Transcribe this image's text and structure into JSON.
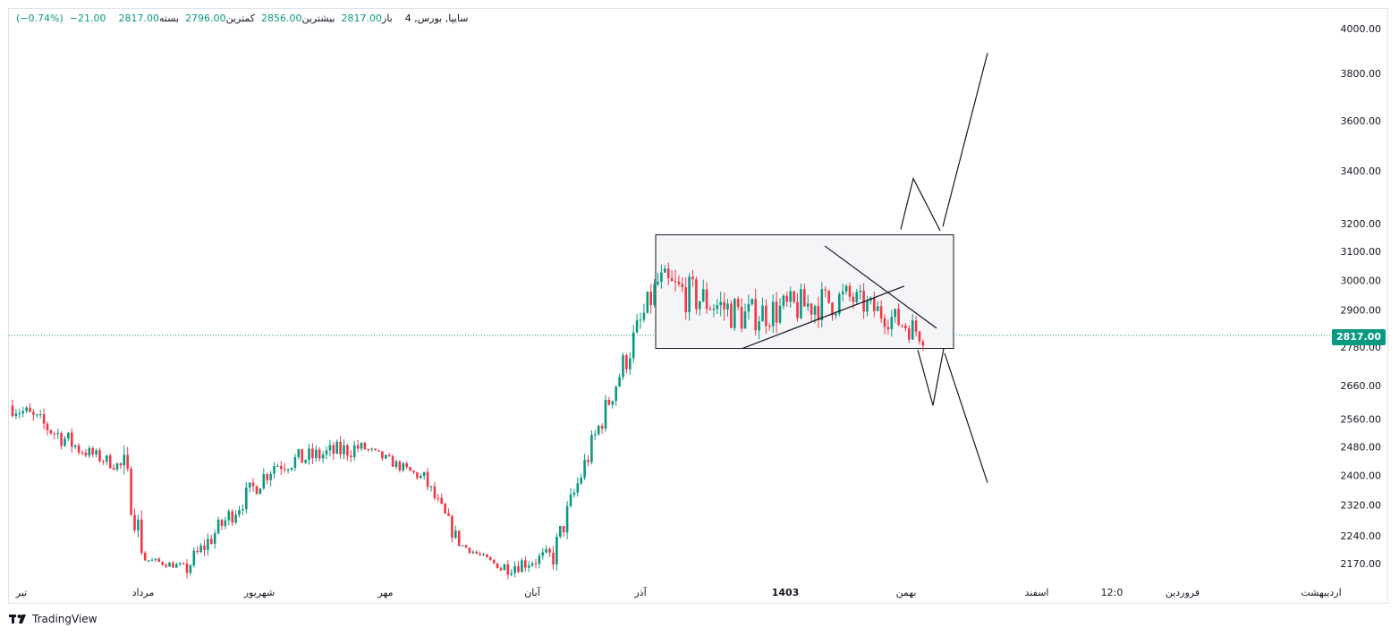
{
  "legend": {
    "symbol": "4 ,سایپا, بورس",
    "open_label": "باز",
    "open": "2817.00",
    "high_label": "بیشترین",
    "high": "2856.00",
    "low_label": "کمترین",
    "low": "2796.00",
    "close_label": "بسته",
    "close": "2817.00",
    "change": "−21.00",
    "change_pct": "(−0.74%)"
  },
  "brand": "TradingView",
  "colors": {
    "up": "#089981",
    "down": "#f23645",
    "last_price": "#089981",
    "grid": "#e0e3eb"
  },
  "chart_data": {
    "type": "candlestick",
    "y_axis_scale": "log",
    "y_ticks": [
      4000,
      3800,
      3600,
      3400,
      3200,
      3100,
      3000,
      2900,
      2780,
      2660,
      2560,
      2480,
      2400,
      2320,
      2240,
      2170
    ],
    "y_tick_labels": [
      "4000.00",
      "3800.00",
      "3600.00",
      "3400.00",
      "3200.00",
      "3100.00",
      "3000.00",
      "2900.00",
      "2780.00",
      "2660.00",
      "2560.00",
      "2480.00",
      "2400.00",
      "2320.00",
      "2240.00",
      "2170.00"
    ],
    "x_tick_labels": [
      "تیر",
      "مرداد",
      "شهریور",
      "مهر",
      "آبان",
      "آذر",
      "1403",
      "بهمن",
      "اسفند",
      "12:0",
      "فروردین",
      "اردیبهشت"
    ],
    "last_price": 2817,
    "last_price_label": "2817.00",
    "segments": [
      {
        "from": 0,
        "to": 20,
        "p0": 2600,
        "p1": 2470,
        "vol": 0.012
      },
      {
        "from": 20,
        "to": 32,
        "p0": 2470,
        "p1": 2420,
        "vol": 0.008
      },
      {
        "from": 32,
        "to": 38,
        "p0": 2420,
        "p1": 2180,
        "vol": 0.02
      },
      {
        "from": 38,
        "to": 50,
        "p0": 2180,
        "p1": 2160,
        "vol": 0.004
      },
      {
        "from": 50,
        "to": 75,
        "p0": 2160,
        "p1": 2430,
        "vol": 0.012
      },
      {
        "from": 75,
        "to": 100,
        "p0": 2430,
        "p1": 2480,
        "vol": 0.012
      },
      {
        "from": 100,
        "to": 118,
        "p0": 2480,
        "p1": 2390,
        "vol": 0.006
      },
      {
        "from": 118,
        "to": 128,
        "p0": 2390,
        "p1": 2220,
        "vol": 0.01
      },
      {
        "from": 128,
        "to": 140,
        "p0": 2220,
        "p1": 2160,
        "vol": 0.004
      },
      {
        "from": 140,
        "to": 155,
        "p0": 2160,
        "p1": 2190,
        "vol": 0.01
      },
      {
        "from": 155,
        "to": 175,
        "p0": 2190,
        "p1": 2720,
        "vol": 0.015
      },
      {
        "from": 175,
        "to": 185,
        "p0": 2720,
        "p1": 2990,
        "vol": 0.018
      },
      {
        "from": 185,
        "to": 210,
        "p0": 2990,
        "p1": 2880,
        "vol": 0.022
      },
      {
        "from": 210,
        "to": 240,
        "p0": 2880,
        "p1": 2940,
        "vol": 0.02
      },
      {
        "from": 240,
        "to": 262,
        "p0": 2940,
        "p1": 2817,
        "vol": 0.015
      }
    ]
  }
}
